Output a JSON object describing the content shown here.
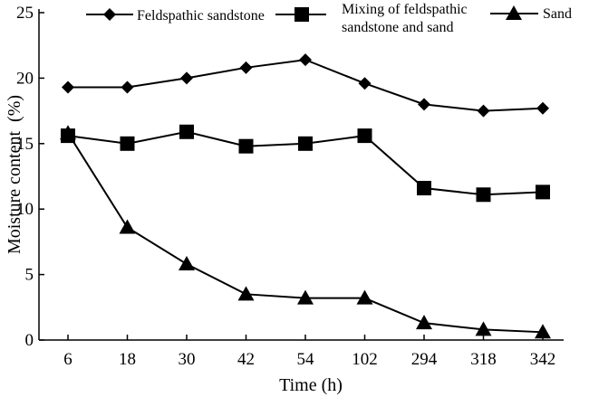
{
  "chart_data": {
    "type": "line",
    "title": "",
    "xlabel": "Time (h)",
    "ylabel": "Moisture content (%)",
    "categories": [
      "6",
      "18",
      "30",
      "42",
      "54",
      "102",
      "294",
      "318",
      "342"
    ],
    "ylim": [
      0,
      25
    ],
    "yticks": [
      "0",
      "5",
      "10",
      "15",
      "20",
      "25"
    ],
    "grid": false,
    "legend_position": "top",
    "series": [
      {
        "name": "Feldspathic sandstone",
        "marker": "diamond",
        "values": [
          19.3,
          19.3,
          20.0,
          20.8,
          21.4,
          19.6,
          18.0,
          17.5,
          17.7
        ]
      },
      {
        "name_lines": [
          "Mixing of feldspathic",
          "sandstone and sand"
        ],
        "marker": "square",
        "values": [
          15.6,
          15.0,
          15.9,
          14.8,
          15.0,
          15.6,
          11.6,
          11.1,
          11.3
        ]
      },
      {
        "name": "Sand",
        "marker": "triangle",
        "values": [
          15.8,
          8.6,
          5.8,
          3.5,
          3.2,
          3.2,
          1.3,
          0.8,
          0.6
        ]
      }
    ],
    "colors": {
      "line": "#000000",
      "marker": "#000000",
      "axis": "#000000"
    }
  }
}
